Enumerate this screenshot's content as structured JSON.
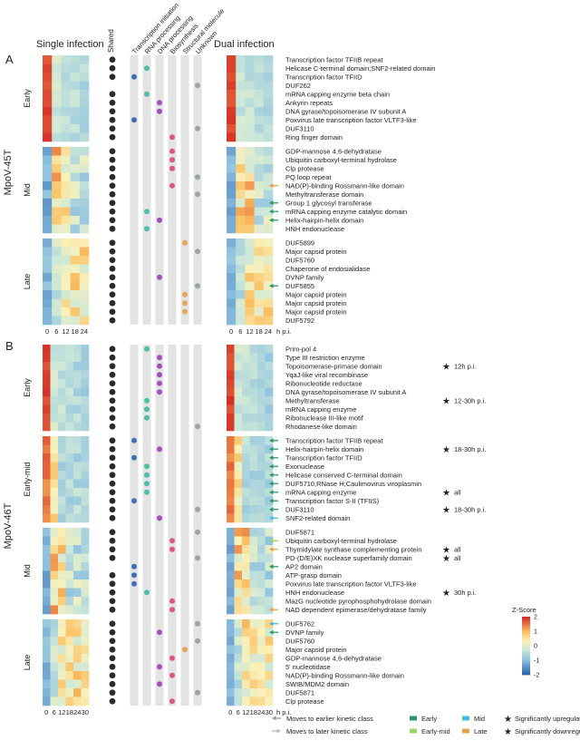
{
  "headers": {
    "single": "Single infection",
    "dual": "Dual infection",
    "shared": "Shared",
    "categories": [
      "Transcription initiation",
      "RNA processing",
      "DNA processing",
      "Biosynthesis",
      "Structural molecule",
      "Unknown"
    ]
  },
  "panels": [
    {
      "letter": "A",
      "virus": "MpoV-45T",
      "xticks": [
        "0",
        "6",
        "12",
        "18",
        "24"
      ],
      "xunit": "h p.i.",
      "groups": [
        {
          "name": "Early",
          "rows": [
            {
              "label": "Transcription factor TFIIB repeat",
              "shared": true,
              "cat": null,
              "arrow": null,
              "sig": null,
              "sig_label": ""
            },
            {
              "label": "Helicase C-terminal domain;SNF2-related domain",
              "shared": true,
              "cat": "rna",
              "arrow": null,
              "sig": null,
              "sig_label": ""
            },
            {
              "label": "Transcription factor TFIID",
              "shared": true,
              "cat": "ti",
              "arrow": null,
              "sig": null,
              "sig_label": ""
            },
            {
              "label": "DUF262",
              "shared": false,
              "cat": "unk",
              "arrow": null,
              "sig": null,
              "sig_label": ""
            },
            {
              "label": "mRNA capping enzyme beta chain",
              "shared": true,
              "cat": "rna",
              "arrow": null,
              "sig": null,
              "sig_label": ""
            },
            {
              "label": "Ankyrin repeats",
              "shared": true,
              "cat": "dna",
              "arrow": null,
              "sig": null,
              "sig_label": ""
            },
            {
              "label": "DNA gyrase/topoisomerase IV subunit A",
              "shared": true,
              "cat": "dna",
              "arrow": null,
              "sig": null,
              "sig_label": ""
            },
            {
              "label": "Poxvirus late transcription factor VLTF3-like",
              "shared": true,
              "cat": "ti",
              "arrow": null,
              "sig": null,
              "sig_label": ""
            },
            {
              "label": "DUF3110",
              "shared": true,
              "cat": "unk",
              "arrow": null,
              "sig": null,
              "sig_label": ""
            },
            {
              "label": "Ring finger domain",
              "shared": true,
              "cat": "bio",
              "arrow": null,
              "sig": null,
              "sig_label": ""
            }
          ]
        },
        {
          "name": "Mid",
          "rows": [
            {
              "label": "GDP-mannose 4,6-dehydratase",
              "shared": true,
              "cat": "bio",
              "arrow": null,
              "sig": null,
              "sig_label": ""
            },
            {
              "label": "Ubiquitin carboxyl-terminal hydrolase",
              "shared": true,
              "cat": "bio",
              "arrow": null,
              "sig": null,
              "sig_label": ""
            },
            {
              "label": "Clp protease",
              "shared": true,
              "cat": "bio",
              "arrow": null,
              "sig": null,
              "sig_label": ""
            },
            {
              "label": "PQ loop repeat",
              "shared": true,
              "cat": "unk",
              "arrow": null,
              "sig": null,
              "sig_label": ""
            },
            {
              "label": "NAD(P)-binding Rossmann-like domain",
              "shared": true,
              "cat": "bio",
              "arrow": "later",
              "sig": null,
              "sig_label": ""
            },
            {
              "label": "Methyltransferase domain",
              "shared": true,
              "cat": "unk",
              "arrow": null,
              "sig": null,
              "sig_label": ""
            },
            {
              "label": "Group 1 glycosyl transferase",
              "shared": true,
              "cat": null,
              "arrow": "earlier",
              "sig": null,
              "sig_label": ""
            },
            {
              "label": "mRNA capping enzyme catalytic domain",
              "shared": true,
              "cat": "rna",
              "arrow": "earlier",
              "sig": null,
              "sig_label": ""
            },
            {
              "label": "Helix-hairpin-helix domain",
              "shared": true,
              "cat": "dna",
              "arrow": "earlier",
              "sig": null,
              "sig_label": ""
            },
            {
              "label": "HNH endonuclease",
              "shared": true,
              "cat": "rna",
              "arrow": null,
              "sig": null,
              "sig_label": ""
            }
          ]
        },
        {
          "name": "Late",
          "rows": [
            {
              "label": "DUF5899",
              "shared": true,
              "cat": "str",
              "arrow": null,
              "sig": null,
              "sig_label": ""
            },
            {
              "label": "Major capsid protein",
              "shared": true,
              "cat": "unk",
              "arrow": null,
              "sig": null,
              "sig_label": ""
            },
            {
              "label": "DUF5760",
              "shared": true,
              "cat": null,
              "arrow": null,
              "sig": null,
              "sig_label": ""
            },
            {
              "label": "Chaperone of endosialidase",
              "shared": true,
              "cat": null,
              "arrow": null,
              "sig": null,
              "sig_label": ""
            },
            {
              "label": "DVNP family",
              "shared": true,
              "cat": "dna",
              "arrow": null,
              "sig": null,
              "sig_label": ""
            },
            {
              "label": "DUF5855",
              "shared": true,
              "cat": "unk",
              "arrow": "earlier",
              "sig": null,
              "sig_label": ""
            },
            {
              "label": "Major capsid protein",
              "shared": true,
              "cat": "str",
              "arrow": null,
              "sig": null,
              "sig_label": ""
            },
            {
              "label": "Major capsid protein",
              "shared": true,
              "cat": "str",
              "arrow": null,
              "sig": null,
              "sig_label": ""
            },
            {
              "label": "Major capsid protein",
              "shared": true,
              "cat": "str",
              "arrow": null,
              "sig": null,
              "sig_label": ""
            },
            {
              "label": "DUF5792",
              "shared": true,
              "cat": null,
              "arrow": null,
              "sig": null,
              "sig_label": ""
            }
          ]
        }
      ]
    },
    {
      "letter": "B",
      "virus": "MpoV-46T",
      "xticks": [
        "0",
        "6",
        "12",
        "18",
        "24",
        "30"
      ],
      "xunit": "h p.i.",
      "groups": [
        {
          "name": "Early",
          "rows": [
            {
              "label": "Prim-pol 4",
              "shared": true,
              "cat": "rna",
              "arrow": null,
              "sig": null,
              "sig_label": ""
            },
            {
              "label": "Type III restriction enzyme",
              "shared": true,
              "cat": "dna",
              "arrow": null,
              "sig": null,
              "sig_label": ""
            },
            {
              "label": "Topoisomerase-primase domain",
              "shared": true,
              "cat": "dna",
              "arrow": null,
              "sig": "down",
              "sig_label": "12h p.i."
            },
            {
              "label": "YqaJ-like viral recombinase",
              "shared": true,
              "cat": "dna",
              "arrow": null,
              "sig": null,
              "sig_label": ""
            },
            {
              "label": "Ribonucleotide reductase",
              "shared": true,
              "cat": "dna",
              "arrow": null,
              "sig": null,
              "sig_label": ""
            },
            {
              "label": "DNA gyrase/topoisomerase IV subunit A",
              "shared": true,
              "cat": "dna",
              "arrow": null,
              "sig": null,
              "sig_label": ""
            },
            {
              "label": "Methyltransferase",
              "shared": true,
              "cat": "rna",
              "arrow": null,
              "sig": "up",
              "sig_label": "12-30h p.i."
            },
            {
              "label": "mRNA capping enzyme",
              "shared": true,
              "cat": "rna",
              "arrow": null,
              "sig": null,
              "sig_label": ""
            },
            {
              "label": "Ribonuclease III-like motif",
              "shared": true,
              "cat": "rna",
              "arrow": null,
              "sig": null,
              "sig_label": ""
            },
            {
              "label": "Rhodanese-like domain",
              "shared": true,
              "cat": "unk",
              "arrow": null,
              "sig": null,
              "sig_label": ""
            }
          ]
        },
        {
          "name": "Early-mid",
          "rows": [
            {
              "label": "Transcription factor TFIIB repeat",
              "shared": true,
              "cat": "ti",
              "arrow": "earlier",
              "sig": null,
              "sig_label": ""
            },
            {
              "label": "Helix-hairpin-helix domain",
              "shared": true,
              "cat": "dna",
              "arrow": "earlier",
              "sig": "up",
              "sig_label": "18-30h p.i."
            },
            {
              "label": "Transcription factor TFIID",
              "shared": true,
              "cat": "ti",
              "arrow": "earlier",
              "sig": null,
              "sig_label": ""
            },
            {
              "label": "Exonuclease",
              "shared": true,
              "cat": "rna",
              "arrow": "earlier",
              "sig": null,
              "sig_label": ""
            },
            {
              "label": "Helicase conserved C-terminal domain",
              "shared": true,
              "cat": "rna",
              "arrow": "earlier",
              "sig": null,
              "sig_label": ""
            },
            {
              "label": "DUF5710;RNase H;Caulimovirus viroplasmin",
              "shared": true,
              "cat": "rna",
              "arrow": "earlier",
              "sig": null,
              "sig_label": ""
            },
            {
              "label": "mRNA capping enzyme",
              "shared": true,
              "cat": "rna",
              "arrow": "earlier",
              "sig": "down",
              "sig_label": "all"
            },
            {
              "label": "Transcription factor S-II (TFIIS)",
              "shared": true,
              "cat": "ti",
              "arrow": "earlier",
              "sig": null,
              "sig_label": ""
            },
            {
              "label": "DUF3110",
              "shared": true,
              "cat": "unk",
              "arrow": "earlier",
              "sig": "up",
              "sig_label": "18-30h p.i."
            },
            {
              "label": "SNF2-related domain",
              "shared": true,
              "cat": "dna",
              "arrow": "midblue",
              "sig": null,
              "sig_label": ""
            }
          ]
        },
        {
          "name": "Mid",
          "rows": [
            {
              "label": "DUF5871",
              "shared": true,
              "cat": "unk",
              "arrow": null,
              "sig": null,
              "sig_label": ""
            },
            {
              "label": "Ubiquitin carboxyl-terminal hydrolase",
              "shared": true,
              "cat": "bio",
              "arrow": "earlymid",
              "sig": null,
              "sig_label": ""
            },
            {
              "label": "Thymidylate synthase complementing protein",
              "shared": true,
              "cat": "bio",
              "arrow": "later",
              "sig": "up",
              "sig_label": "all"
            },
            {
              "label": "PD-(D/E)XK nuclease superfamily domain",
              "shared": true,
              "cat": "unk",
              "arrow": null,
              "sig": "up",
              "sig_label": "all"
            },
            {
              "label": "AP2 domain",
              "shared": false,
              "cat": "ti",
              "arrow": "earlier",
              "sig": null,
              "sig_label": ""
            },
            {
              "label": "ATP-grasp domain",
              "shared": true,
              "cat": "ti",
              "arrow": null,
              "sig": null,
              "sig_label": ""
            },
            {
              "label": "Poxvirus late transcription factor VLTF3-like",
              "shared": true,
              "cat": "ti",
              "arrow": null,
              "sig": null,
              "sig_label": ""
            },
            {
              "label": "HNH endonuclease",
              "shared": true,
              "cat": "rna",
              "arrow": null,
              "sig": "up",
              "sig_label": "30h p.i."
            },
            {
              "label": "MazG nucleotide pyrophosphohydrolase domain",
              "shared": true,
              "cat": "bio",
              "arrow": null,
              "sig": null,
              "sig_label": ""
            },
            {
              "label": "NAD dependent epimerase/dehydratase family",
              "shared": true,
              "cat": "bio",
              "arrow": "later",
              "sig": null,
              "sig_label": ""
            }
          ]
        },
        {
          "name": "Late",
          "rows": [
            {
              "label": "DUF5762",
              "shared": true,
              "cat": "unk",
              "arrow": "midblue",
              "sig": null,
              "sig_label": ""
            },
            {
              "label": "DVNP family",
              "shared": true,
              "cat": "dna",
              "arrow": "earlier",
              "sig": null,
              "sig_label": ""
            },
            {
              "label": "DUF5760",
              "shared": true,
              "cat": "unk",
              "arrow": null,
              "sig": null,
              "sig_label": ""
            },
            {
              "label": "Major capsid protein",
              "shared": true,
              "cat": "str",
              "arrow": null,
              "sig": null,
              "sig_label": ""
            },
            {
              "label": "GDP-mannose 4,6-dehydratase",
              "shared": true,
              "cat": "bio",
              "arrow": null,
              "sig": null,
              "sig_label": ""
            },
            {
              "label": "5' nucleotidase",
              "shared": true,
              "cat": "dna",
              "arrow": null,
              "sig": null,
              "sig_label": ""
            },
            {
              "label": "NAD(P)-binding Rossmann-like domain",
              "shared": true,
              "cat": "bio",
              "arrow": null,
              "sig": null,
              "sig_label": ""
            },
            {
              "label": "SWIB/MDM2 domain",
              "shared": true,
              "cat": "dna",
              "arrow": null,
              "sig": null,
              "sig_label": ""
            },
            {
              "label": "DUF5871",
              "shared": true,
              "cat": "unk",
              "arrow": null,
              "sig": null,
              "sig_label": ""
            },
            {
              "label": "Clp protease",
              "shared": true,
              "cat": "bio",
              "arrow": null,
              "sig": null,
              "sig_label": ""
            }
          ]
        }
      ]
    }
  ],
  "colorbar": {
    "title": "Z-Score",
    "ticks": [
      "2",
      "1",
      "0",
      "-1",
      "-2"
    ],
    "min": -2,
    "max": 2
  },
  "legend": {
    "earlier": "Moves to earlier kinetic class",
    "later": "Moves to later kinetic class",
    "classes": [
      "Early",
      "Early-mid",
      "Mid",
      "Late"
    ],
    "up": "Significantly upregulated",
    "down": "Significantly downregulated"
  },
  "colors": {
    "ti": "#3f6fb5",
    "rna": "#4cbfa4",
    "dna": "#a24fbf",
    "bio": "#d8587e",
    "str": "#e8a45a",
    "unk": "#9aa6a6",
    "shared": "#2b2b2b",
    "arrow_earlier": "#2e9a6b",
    "arrow_later": "#e9a24b",
    "arrow_midblue": "#4fb7d8",
    "arrow_earlymid": "#9bd26a",
    "sig_up": "#d0443b",
    "sig_down": "#3355a4",
    "col_bg": "#e3e3e3"
  }
}
